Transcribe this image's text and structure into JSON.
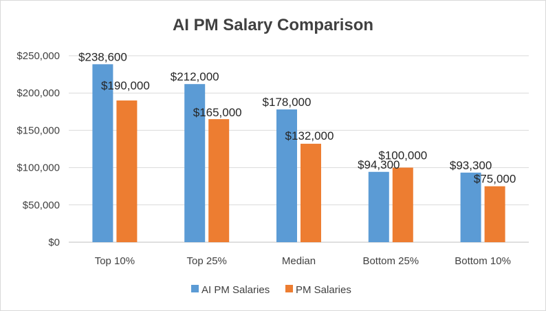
{
  "chart_data": {
    "type": "bar",
    "title": "AI PM Salary Comparison",
    "categories": [
      "Top 10%",
      "Top 25%",
      "Median",
      "Bottom 25%",
      "Bottom 10%"
    ],
    "series": [
      {
        "name": "AI PM Salaries",
        "values": [
          238600,
          212000,
          178000,
          94300,
          93300
        ],
        "labels": [
          "$238,600",
          "$212,000",
          "$178,000",
          "$94,300",
          "$93,300"
        ],
        "color": "#5b9bd5"
      },
      {
        "name": "PM Salaries",
        "values": [
          190000,
          165000,
          132000,
          100000,
          75000
        ],
        "labels": [
          "$190,000",
          "$165,000",
          "$132,000",
          "$100,000",
          "$75,000"
        ],
        "color": "#ed7d31"
      }
    ],
    "ylim": [
      0,
      250000
    ],
    "yticks": [
      0,
      50000,
      100000,
      150000,
      200000,
      250000
    ],
    "ytick_labels": [
      "$0",
      "$50,000",
      "$100,000",
      "$150,000",
      "$200,000",
      "$250,000"
    ],
    "grid": true,
    "legend_position": "bottom"
  }
}
